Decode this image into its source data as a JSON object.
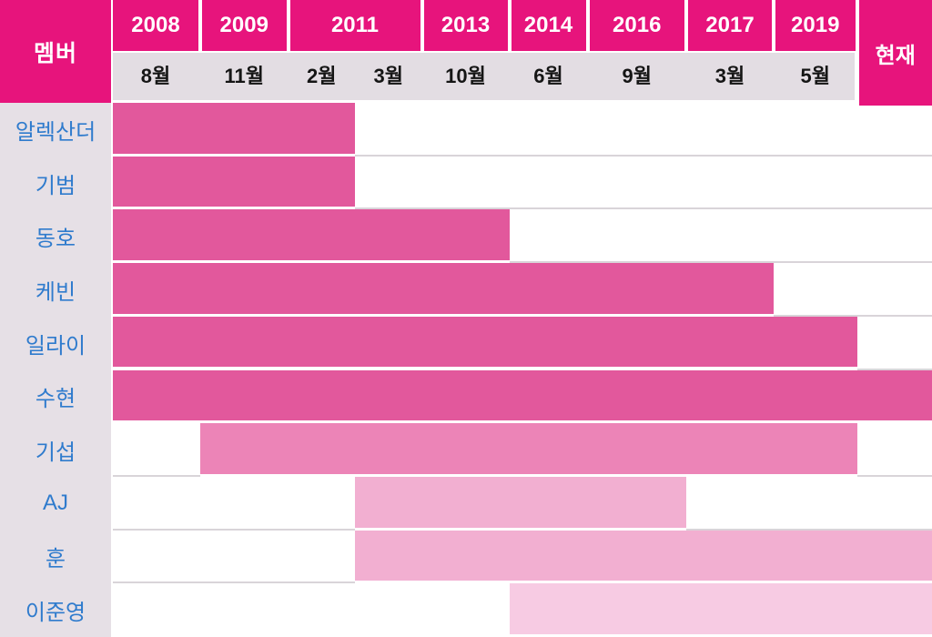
{
  "header": {
    "member_label": "멤버",
    "current_label": "현재",
    "year_groups": [
      {
        "year": "2008",
        "col_ids": [
          "2008-08"
        ],
        "months": [
          "8월"
        ]
      },
      {
        "year": "2009",
        "col_ids": [
          "2009-11"
        ],
        "months": [
          "11월"
        ]
      },
      {
        "year": "2011",
        "col_ids": [
          "2011-02",
          "2011-03"
        ],
        "months": [
          "2월",
          "3월"
        ]
      },
      {
        "year": "2013",
        "col_ids": [
          "2013-10"
        ],
        "months": [
          "10월"
        ]
      },
      {
        "year": "2014",
        "col_ids": [
          "2014-06"
        ],
        "months": [
          "6월"
        ]
      },
      {
        "year": "2016",
        "col_ids": [
          "2016-09"
        ],
        "months": [
          "9월"
        ]
      },
      {
        "year": "2017",
        "col_ids": [
          "2017-03"
        ],
        "months": [
          "3월"
        ]
      },
      {
        "year": "2019",
        "col_ids": [
          "2019-05"
        ],
        "months": [
          "5월"
        ]
      }
    ]
  },
  "colors": {
    "header_magenta": "#E7147C",
    "months_band_bg": "#E3DDE3",
    "member_col_bg": "#E6E0E6",
    "member_name_blue": "#2F7BCD",
    "month_text": "#151515",
    "row_line": "#D9D4D9",
    "bar_gen1": "#E2589C",
    "bar_gen2": "#EC84B7",
    "bar_gen3": "#F2AFD1",
    "bar_gen4": "#F7CBE3"
  },
  "chart_data": {
    "type": "bar",
    "variant": "gantt-membership-timeline",
    "x_columns": [
      {
        "year": "2008",
        "month": "8월"
      },
      {
        "year": "2009",
        "month": "11월"
      },
      {
        "year": "2011",
        "month": "2월"
      },
      {
        "year": "2011",
        "month": "3월"
      },
      {
        "year": "2013",
        "month": "10월"
      },
      {
        "year": "2014",
        "month": "6월"
      },
      {
        "year": "2016",
        "month": "9월"
      },
      {
        "year": "2017",
        "month": "3월"
      },
      {
        "year": "2019",
        "month": "5월"
      },
      {
        "year": "현재",
        "month": ""
      }
    ],
    "legend_position": "none",
    "grid": "row-separators-only",
    "members": [
      {
        "name": "알렉산더",
        "from": "2008-08",
        "to": "2011-02",
        "tier": "gen1"
      },
      {
        "name": "기범",
        "from": "2008-08",
        "to": "2011-02",
        "tier": "gen1"
      },
      {
        "name": "동호",
        "from": "2008-08",
        "to": "2013-10",
        "tier": "gen1"
      },
      {
        "name": "케빈",
        "from": "2008-08",
        "to": "2017-03",
        "tier": "gen1"
      },
      {
        "name": "일라이",
        "from": "2008-08",
        "to": "2019-05",
        "tier": "gen1"
      },
      {
        "name": "수현",
        "from": "2008-08",
        "to": "현재",
        "tier": "gen1"
      },
      {
        "name": "기섭",
        "from": "2009-11",
        "to": "2019-05",
        "tier": "gen2"
      },
      {
        "name": "AJ",
        "from": "2011-03",
        "to": "2016-09",
        "tier": "gen3"
      },
      {
        "name": "훈",
        "from": "2011-03",
        "to": "현재",
        "tier": "gen3"
      },
      {
        "name": "이준영",
        "from": "2014-06",
        "to": "현재",
        "tier": "gen4"
      }
    ]
  }
}
